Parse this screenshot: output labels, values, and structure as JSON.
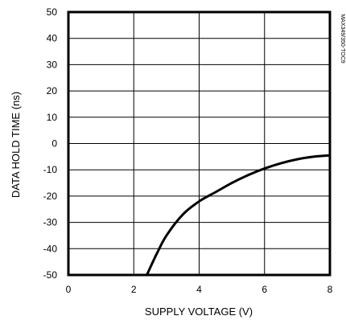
{
  "chart_data": {
    "type": "line",
    "xlabel": "SUPPLY VOLTAGE (V)",
    "ylabel": "DATA HOLD TIME (ns)",
    "xlim": [
      0,
      8
    ],
    "ylim": [
      -50,
      50
    ],
    "xticks": [
      0,
      2,
      4,
      6,
      8
    ],
    "yticks": [
      50,
      40,
      30,
      20,
      10,
      0,
      -10,
      -20,
      -30,
      -40,
      -50
    ],
    "x_tick_labels": [
      "0",
      "2",
      "4",
      "6",
      "8"
    ],
    "y_tick_labels": [
      "50",
      "40",
      "30",
      "20",
      "10",
      "0",
      "-10",
      "-20",
      "-30",
      "-40",
      "-50"
    ],
    "grid": true,
    "watermark": "MAX349/350-TOC9",
    "series": [
      {
        "x": [
          2.4,
          2.7,
          3.0,
          3.5,
          4.0,
          4.5,
          5.0,
          5.5,
          6.0,
          6.5,
          7.0,
          7.5,
          8.0
        ],
        "y": [
          -50,
          -42,
          -35,
          -27,
          -22,
          -18.5,
          -15,
          -12,
          -9.5,
          -7.5,
          -6,
          -5,
          -4.5
        ]
      }
    ]
  }
}
